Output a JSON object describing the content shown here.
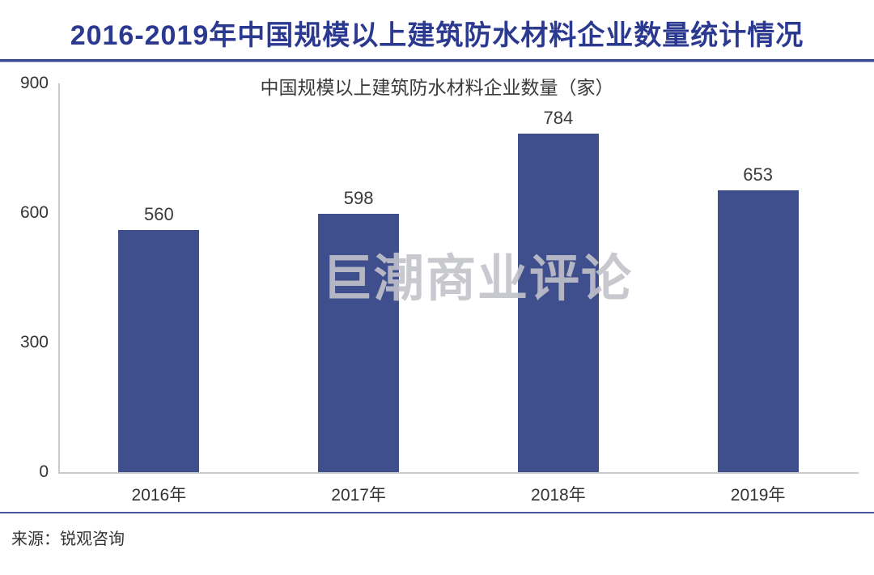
{
  "header": {
    "title": "2016-2019年中国规模以上建筑防水材料企业数量统计情况"
  },
  "chart_data": {
    "type": "bar",
    "title": "中国规模以上建筑防水材料企业数量（家）",
    "categories": [
      "2016年",
      "2017年",
      "2018年",
      "2019年"
    ],
    "values": [
      560,
      598,
      784,
      653
    ],
    "xlabel": "",
    "ylabel": "",
    "ylim": [
      0,
      900
    ],
    "yticks": [
      0,
      300,
      600,
      900
    ],
    "grid": false,
    "legend": "none",
    "bar_color": "#3F4E8D"
  },
  "watermark": {
    "text": "巨潮商业评论"
  },
  "source": {
    "label": "来源：锐观咨询"
  },
  "colors": {
    "title": "#2B3990",
    "divider": "#3D4A96",
    "bar": "#3F4E8D",
    "axis_line": "#C9CACE",
    "text": "#333333",
    "watermark": "rgba(193,195,201,0.9)"
  }
}
